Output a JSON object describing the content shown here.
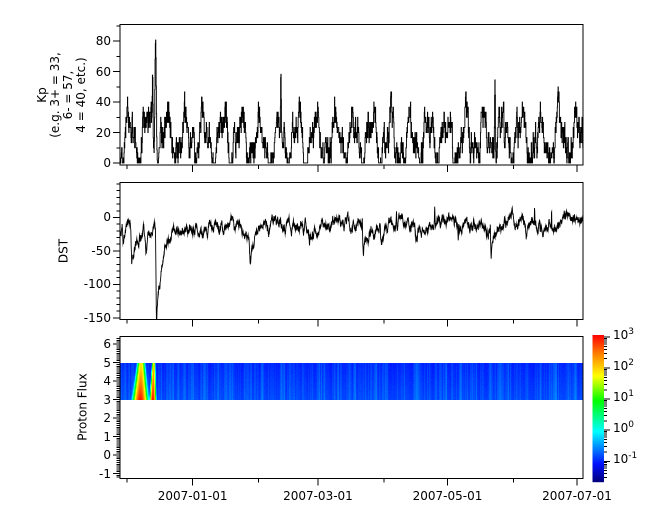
{
  "figure": {
    "background": "#ffffff",
    "line_color": "#000000"
  },
  "xaxis": {
    "labels": [
      "2007-01-01",
      "2007-03-01",
      "2007-05-01",
      "2007-07-01"
    ],
    "major_days": [
      35,
      94,
      155,
      216
    ],
    "minor_days": [
      4,
      66,
      125,
      186
    ],
    "minor_dates": [
      "2006-12-01",
      "2007-02-01",
      "2007-04-01",
      "2007-06-01"
    ],
    "day_start": 0.8,
    "day_end": 218.8,
    "epoch_day0": "2006-11-27"
  },
  "render_seed": 20061214,
  "chart_data": [
    {
      "panel": "kp",
      "type": "line",
      "ylabel_lines": [
        "Kp",
        "(e.g. 3+ = 33,",
        "6- = 57,",
        "4 = 40, etc.)"
      ],
      "ylabel": "Kp (e.g. 3+ = 33, 6- = 57, 4 = 40, etc.)",
      "yticks": [
        80,
        60,
        40,
        20,
        0
      ],
      "yminor_step": 10,
      "ylim": [
        -1.2,
        91
      ],
      "cadence_hours": 3,
      "description": "3-hourly planetary Kp index (x10): noisy recurrent activity 0-55 with ~9-day stream bumps; single large storm spike.",
      "peak": {
        "date": "2006-12-14",
        "day": 17.5,
        "value": 83
      },
      "events": [
        [
          16.1,
          62,
          0.3
        ],
        [
          17.5,
          83,
          0.45
        ],
        [
          76.5,
          61,
          0.3
        ],
        [
          177.3,
          57,
          0.28
        ]
      ],
      "gen": {
        "mean": 16,
        "osc_amp": 13,
        "osc_period_days": 8.8,
        "osc2_amp": 7,
        "osc2_period_days": 3.9,
        "noise": 11,
        "quantum": 3.333,
        "clamp_max": 57
      }
    },
    {
      "panel": "dst",
      "type": "line",
      "ylabel": "DST",
      "yticks": [
        0,
        -50,
        -100,
        -150
      ],
      "yminor_step": 10,
      "ylim": [
        -152.8,
        52
      ],
      "cadence_hours": 2,
      "description": "DST index: baseline -25 to -10 nT recovering through spring, sharp storm dips (min ~-150 nT mid-Dec 2006) and brief positive sudden-commencement spikes.",
      "min": {
        "date": "2006-12-15",
        "day": 17.9,
        "value": -150
      },
      "storms": [
        [
          2.2,
          -20,
          0.8
        ],
        [
          6.3,
          -52,
          2.0
        ],
        [
          13.0,
          -30,
          1.0
        ],
        [
          17.9,
          -135,
          2.8
        ],
        [
          62.0,
          -35,
          1.5
        ],
        [
          90.0,
          -20,
          1.0
        ],
        [
          115.3,
          -40,
          1.5
        ],
        [
          123.8,
          -30,
          1.2
        ],
        [
          140.0,
          -18,
          1.0
        ],
        [
          160.0,
          -26,
          1.0
        ],
        [
          175.5,
          -40,
          1.5
        ],
        [
          192.0,
          -26,
          1.2
        ]
      ],
      "ssc_spikes": [
        [
          114.9,
          15
        ],
        [
          131.0,
          22
        ],
        [
          149.0,
          25
        ],
        [
          160.3,
          20
        ],
        [
          175.2,
          18
        ],
        [
          196.0,
          20
        ],
        [
          204.0,
          28
        ]
      ],
      "gen": {
        "base_start": -18,
        "base_end": -8,
        "osc_amp": 5,
        "osc_period_days": 27,
        "noise": 5
      }
    },
    {
      "panel": "proton",
      "type": "heatmap",
      "ylabel": "Proton Flux",
      "yticks": [
        6,
        5,
        4,
        3,
        2,
        1,
        0,
        -1
      ],
      "yminor_step": 0.1,
      "ylim": [
        -1.28,
        6.42
      ],
      "band_y": [
        3,
        5
      ],
      "band_start_day": 0.9,
      "background_log10": -1.0,
      "description": "Proton flux spectrogram drawn in band y=3-5: quiet dark-blue ~10^-1 with faint column striping; two solar-proton bursts in early/mid Dec 2006 reaching red ~10^3 near band bottom.",
      "events": [
        {
          "center_day": 10.4,
          "sigma_days": 1.45,
          "log10_peak": 2.95,
          "date": "2006-12-07"
        },
        {
          "center_day": 16.3,
          "sigma_days": 0.6,
          "log10_peak": 3.0,
          "date": "2006-12-13"
        }
      ]
    }
  ],
  "colorbar": {
    "scale": "log",
    "log10_range": [
      -1.645,
      3.065
    ],
    "ticks": [
      {
        "base": "10",
        "exp": "3",
        "log": 3
      },
      {
        "base": "10",
        "exp": "2",
        "log": 2
      },
      {
        "base": "10",
        "exp": "1",
        "log": 1
      },
      {
        "base": "10",
        "exp": "0",
        "log": 0
      },
      {
        "base": "10",
        "exp": "-1",
        "log": -1
      }
    ],
    "colormap": "jet",
    "colormap_stops": [
      [
        0.0,
        "#000080"
      ],
      [
        0.12,
        "#0010ff"
      ],
      [
        0.34,
        "#00ffff"
      ],
      [
        0.55,
        "#00ff00"
      ],
      [
        0.72,
        "#ffff00"
      ],
      [
        0.87,
        "#ff8000"
      ],
      [
        1.0,
        "#ff0000"
      ]
    ]
  }
}
